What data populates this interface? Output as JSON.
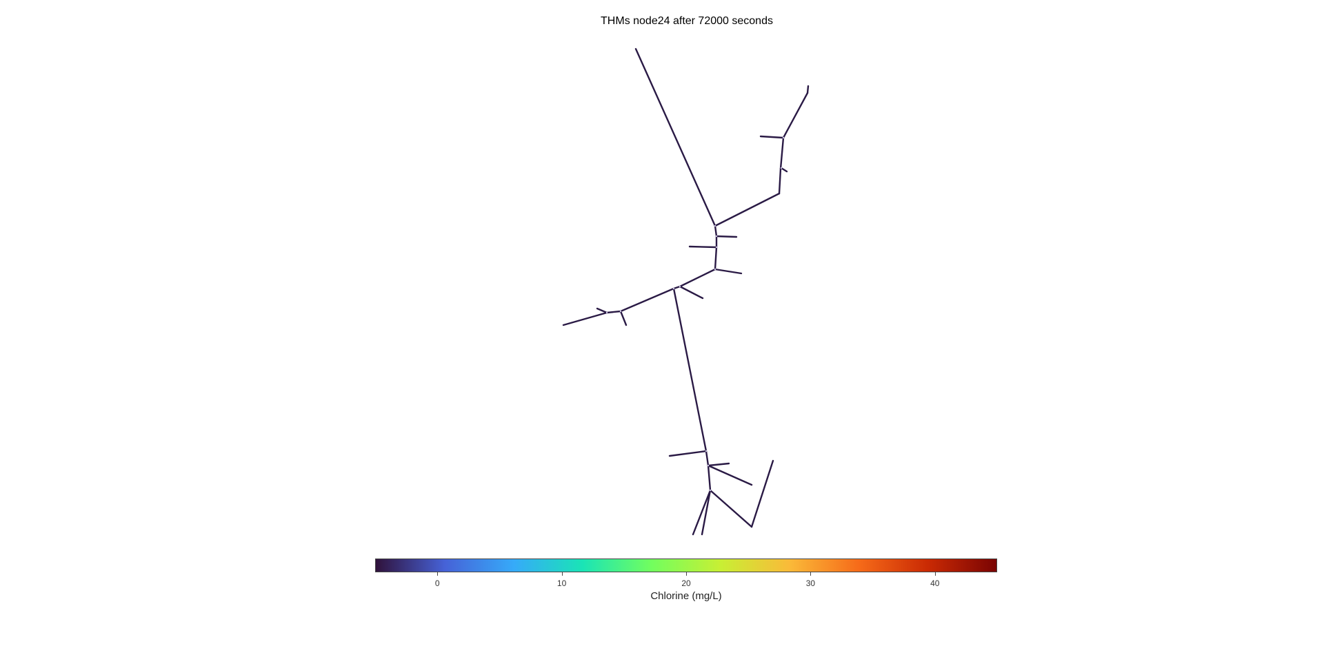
{
  "figure": {
    "title": "THMs node24 after 72000 seconds"
  },
  "network": {
    "pipe_color": "#2a1a45",
    "node_color": "#c9c2e0"
  },
  "colorbar": {
    "label": "Chlorine (mg/L)",
    "range": [
      -5,
      45
    ],
    "colormap": "turbo",
    "stops": [
      "#30123b",
      "#4662d7",
      "#36aaf9",
      "#1ae4b6",
      "#72fe5e",
      "#c8ef34",
      "#faba39",
      "#f66b19",
      "#ca2a04",
      "#7a0403"
    ],
    "ticks": [
      {
        "value": 0,
        "label": "0"
      },
      {
        "value": 10,
        "label": "10"
      },
      {
        "value": 20,
        "label": "20"
      },
      {
        "value": 30,
        "label": "30"
      },
      {
        "value": 40,
        "label": "40"
      }
    ]
  }
}
